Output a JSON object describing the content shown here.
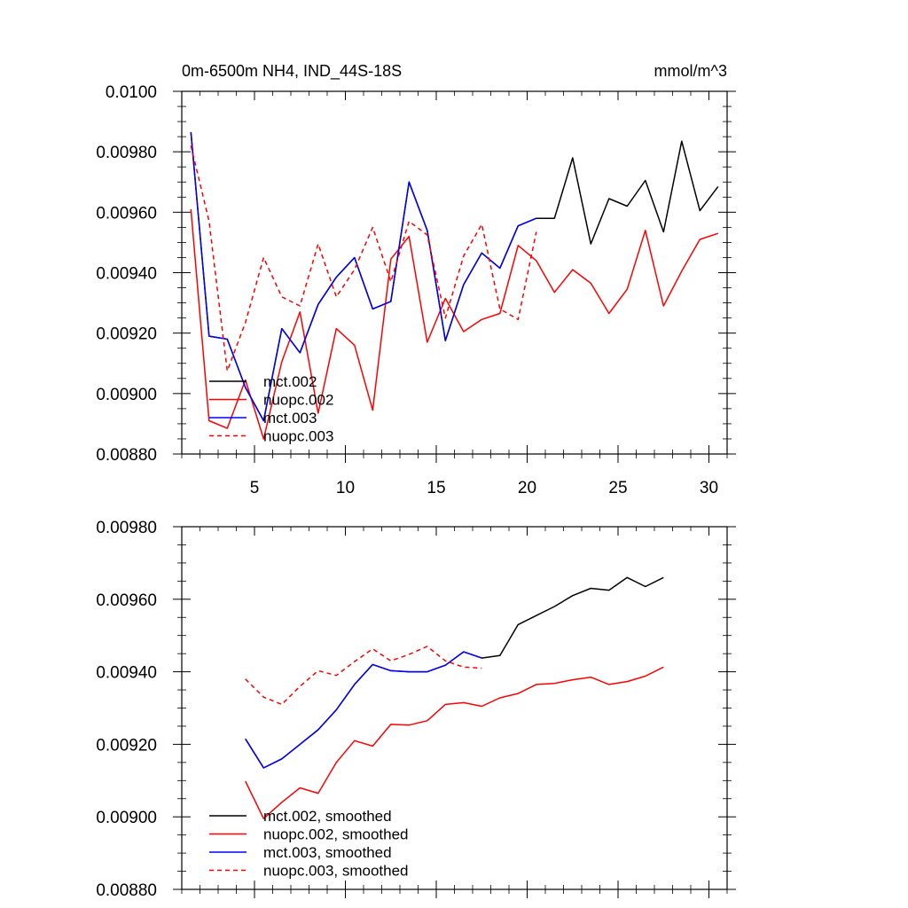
{
  "chart_data": [
    {
      "type": "line",
      "title": "0m-6500m NH4, IND_44S-18S",
      "units": "mmol/m^3",
      "xlabel": "",
      "ylabel": "",
      "xlim": [
        1,
        31
      ],
      "ylim": [
        0.0088,
        0.01
      ],
      "xticks": [
        5,
        10,
        15,
        20,
        25,
        30
      ],
      "xtick_labels": [
        "5",
        "10",
        "15",
        "20",
        "25",
        "30"
      ],
      "yticks": [
        0.0088,
        0.009,
        0.0092,
        0.0094,
        0.0096,
        0.0098,
        0.01
      ],
      "ytick_labels": [
        "0.00880",
        "0.00900",
        "0.00920",
        "0.00940",
        "0.00960",
        "0.00980",
        "0.0100"
      ],
      "legend_position": "lower-left",
      "grid": false,
      "series": [
        {
          "name": "mct.002",
          "color": "#000000",
          "dash": "solid",
          "x": [
            1.5,
            2.5,
            3.5,
            4.5,
            5.5,
            6.5,
            7.5,
            8.5,
            9.5,
            10.5,
            11.5,
            12.5,
            13.5,
            14.5,
            15.5,
            16.5,
            17.5,
            18.5,
            19.5,
            20.5,
            21.5,
            22.5,
            23.5,
            24.5,
            25.5,
            26.5,
            27.5,
            28.5,
            29.5,
            30.5
          ],
          "y": [
            0.009865,
            0.00919,
            0.00918,
            0.00902,
            0.00891,
            0.009215,
            0.009135,
            0.009295,
            0.009385,
            0.00945,
            0.00928,
            0.009305,
            0.0097,
            0.00954,
            0.009175,
            0.00936,
            0.009465,
            0.009415,
            0.009555,
            0.00958,
            0.00958,
            0.00978,
            0.009495,
            0.009645,
            0.00962,
            0.009705,
            0.009535,
            0.009835,
            0.009605,
            0.009685
          ]
        },
        {
          "name": "nuopc.002",
          "color": "#ff0000",
          "dash": "solid",
          "x": [
            1.5,
            2.5,
            3.5,
            4.5,
            5.5,
            6.5,
            7.5,
            8.5,
            9.5,
            10.5,
            11.5,
            12.5,
            13.5,
            14.5,
            15.5,
            16.5,
            17.5,
            18.5,
            19.5,
            20.5,
            21.5,
            22.5,
            23.5,
            24.5,
            25.5,
            26.5,
            27.5,
            28.5,
            29.5,
            30.5
          ],
          "y": [
            0.00961,
            0.00891,
            0.008885,
            0.009045,
            0.00885,
            0.009105,
            0.00927,
            0.008935,
            0.009215,
            0.00916,
            0.008945,
            0.009445,
            0.00952,
            0.00917,
            0.009315,
            0.009205,
            0.009245,
            0.009265,
            0.00949,
            0.00944,
            0.009335,
            0.00941,
            0.009365,
            0.009265,
            0.009345,
            0.00954,
            0.00929,
            0.009405,
            0.00951,
            0.00953
          ]
        },
        {
          "name": "mct.003",
          "color": "#0000ff",
          "dash": "solid",
          "x": [
            1.5,
            2.5,
            3.5,
            4.5,
            5.5,
            6.5,
            7.5,
            8.5,
            9.5,
            10.5,
            11.5,
            12.5,
            13.5,
            14.5,
            15.5,
            16.5,
            17.5,
            18.5,
            19.5,
            20.5
          ],
          "y": [
            0.009865,
            0.00919,
            0.00918,
            0.00902,
            0.00891,
            0.009215,
            0.009135,
            0.009295,
            0.009385,
            0.00945,
            0.00928,
            0.009305,
            0.0097,
            0.00954,
            0.009175,
            0.00936,
            0.009465,
            0.009415,
            0.009555,
            0.00958
          ]
        },
        {
          "name": "nuopc.003",
          "color": "#ff0000",
          "dash": "dashed",
          "x": [
            1.5,
            2.5,
            3.5,
            4.5,
            5.5,
            6.5,
            7.5,
            8.5,
            9.5,
            10.5,
            11.5,
            12.5,
            13.5,
            14.5,
            15.5,
            16.5,
            17.5,
            18.5,
            19.5,
            20.5
          ],
          "y": [
            0.00982,
            0.00957,
            0.009075,
            0.009235,
            0.00945,
            0.00932,
            0.00929,
            0.009495,
            0.00932,
            0.00941,
            0.00955,
            0.00937,
            0.00957,
            0.009525,
            0.00925,
            0.009455,
            0.00956,
            0.00928,
            0.009245,
            0.009535
          ]
        }
      ]
    },
    {
      "type": "line",
      "title": "",
      "xlabel": "",
      "ylabel": "",
      "xlim": [
        1,
        31
      ],
      "ylim": [
        0.0088,
        0.0098
      ],
      "xticks": [
        5,
        10,
        15,
        20,
        25,
        30
      ],
      "xtick_labels": [],
      "yticks": [
        0.0088,
        0.009,
        0.0092,
        0.0094,
        0.0096,
        0.0098
      ],
      "ytick_labels": [
        "0.00880",
        "0.00900",
        "0.00920",
        "0.00940",
        "0.00960",
        "0.00980"
      ],
      "legend_position": "lower-left",
      "grid": false,
      "series": [
        {
          "name": "mct.002, smoothed",
          "color": "#000000",
          "dash": "solid",
          "x": [
            4.5,
            5.5,
            6.5,
            7.5,
            8.5,
            9.5,
            10.5,
            11.5,
            12.5,
            13.5,
            14.5,
            15.5,
            16.5,
            17.5,
            18.5,
            19.5,
            20.5,
            21.5,
            22.5,
            23.5,
            24.5,
            25.5,
            26.5,
            27.5
          ],
          "y": [
            0.009215,
            0.009135,
            0.00916,
            0.0092,
            0.00924,
            0.009295,
            0.009365,
            0.00942,
            0.009403,
            0.0094,
            0.0094,
            0.009418,
            0.009455,
            0.009438,
            0.009445,
            0.00953,
            0.009555,
            0.00958,
            0.00961,
            0.00963,
            0.009625,
            0.00966,
            0.009635,
            0.00966
          ]
        },
        {
          "name": "nuopc.002, smoothed",
          "color": "#ff0000",
          "dash": "solid",
          "x": [
            4.5,
            5.5,
            6.5,
            7.5,
            8.5,
            9.5,
            10.5,
            11.5,
            12.5,
            13.5,
            14.5,
            15.5,
            16.5,
            17.5,
            18.5,
            19.5,
            20.5,
            21.5,
            22.5,
            23.5,
            24.5,
            25.5,
            26.5,
            27.5
          ],
          "y": [
            0.009098,
            0.008995,
            0.00904,
            0.00908,
            0.009065,
            0.00915,
            0.00921,
            0.009195,
            0.009255,
            0.009253,
            0.009265,
            0.00931,
            0.009315,
            0.009305,
            0.009328,
            0.00934,
            0.009365,
            0.009368,
            0.009378,
            0.009385,
            0.009365,
            0.009373,
            0.009388,
            0.009413
          ]
        },
        {
          "name": "mct.003, smoothed",
          "color": "#0000ff",
          "dash": "solid",
          "x": [
            4.5,
            5.5,
            6.5,
            7.5,
            8.5,
            9.5,
            10.5,
            11.5,
            12.5,
            13.5,
            14.5,
            15.5,
            16.5,
            17.5
          ],
          "y": [
            0.009215,
            0.009135,
            0.00916,
            0.0092,
            0.00924,
            0.009295,
            0.009365,
            0.00942,
            0.009403,
            0.0094,
            0.0094,
            0.009418,
            0.009455,
            0.009438
          ]
        },
        {
          "name": "nuopc.003, smoothed",
          "color": "#ff0000",
          "dash": "dashed",
          "x": [
            4.5,
            5.5,
            6.5,
            7.5,
            8.5,
            9.5,
            10.5,
            11.5,
            12.5,
            13.5,
            14.5,
            15.5,
            16.5,
            17.5
          ],
          "y": [
            0.00938,
            0.00933,
            0.00931,
            0.00936,
            0.009403,
            0.00939,
            0.009428,
            0.009463,
            0.00943,
            0.009448,
            0.00947,
            0.00943,
            0.009413,
            0.00941
          ]
        }
      ]
    }
  ]
}
